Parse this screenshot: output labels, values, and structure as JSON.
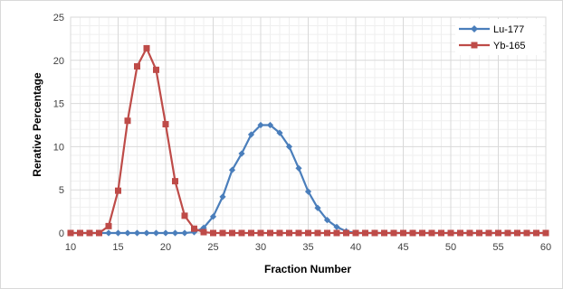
{
  "chart_data": {
    "type": "line",
    "title": "",
    "xlabel": "Fraction Number",
    "ylabel": "Rerative Percentage",
    "xlim": [
      10,
      60
    ],
    "ylim": [
      0,
      25
    ],
    "xticks": [
      10,
      15,
      20,
      25,
      30,
      35,
      40,
      45,
      50,
      55,
      60
    ],
    "yticks": [
      0,
      5,
      10,
      15,
      20,
      25
    ],
    "grid": true,
    "minor_grid": true,
    "legend_position": "top-right",
    "x": [
      10,
      11,
      12,
      13,
      14,
      15,
      16,
      17,
      18,
      19,
      20,
      21,
      22,
      23,
      24,
      25,
      26,
      27,
      28,
      29,
      30,
      31,
      32,
      33,
      34,
      35,
      36,
      37,
      38,
      39,
      40,
      41,
      42,
      43,
      44,
      45,
      46,
      47,
      48,
      49,
      50,
      51,
      52,
      53,
      54,
      55,
      56,
      57,
      58,
      59,
      60
    ],
    "series": [
      {
        "name": "Lu-177",
        "color": "#4a7ebb",
        "marker": "diamond",
        "values": [
          0,
          0,
          0,
          0,
          0,
          0,
          0,
          0,
          0,
          0,
          0,
          0,
          0,
          0.1,
          0.6,
          1.9,
          4.2,
          7.3,
          9.2,
          11.4,
          12.5,
          12.5,
          11.6,
          10.0,
          7.5,
          4.8,
          2.9,
          1.5,
          0.7,
          0.2,
          0,
          0,
          0,
          0,
          0,
          0,
          0,
          0,
          0,
          0,
          0,
          0,
          0,
          0,
          0,
          0,
          0,
          0,
          0,
          0,
          0
        ]
      },
      {
        "name": "Yb-165",
        "color": "#be4b48",
        "marker": "square",
        "values": [
          0,
          0,
          0,
          0,
          0.8,
          4.9,
          13.0,
          19.3,
          21.4,
          18.9,
          12.6,
          6.0,
          2.0,
          0.5,
          0.1,
          0,
          0,
          0,
          0,
          0,
          0,
          0,
          0,
          0,
          0,
          0,
          0,
          0,
          0,
          0,
          0,
          0,
          0,
          0,
          0,
          0,
          0,
          0,
          0,
          0,
          0,
          0,
          0,
          0,
          0,
          0,
          0,
          0,
          0,
          0,
          0
        ]
      }
    ]
  }
}
